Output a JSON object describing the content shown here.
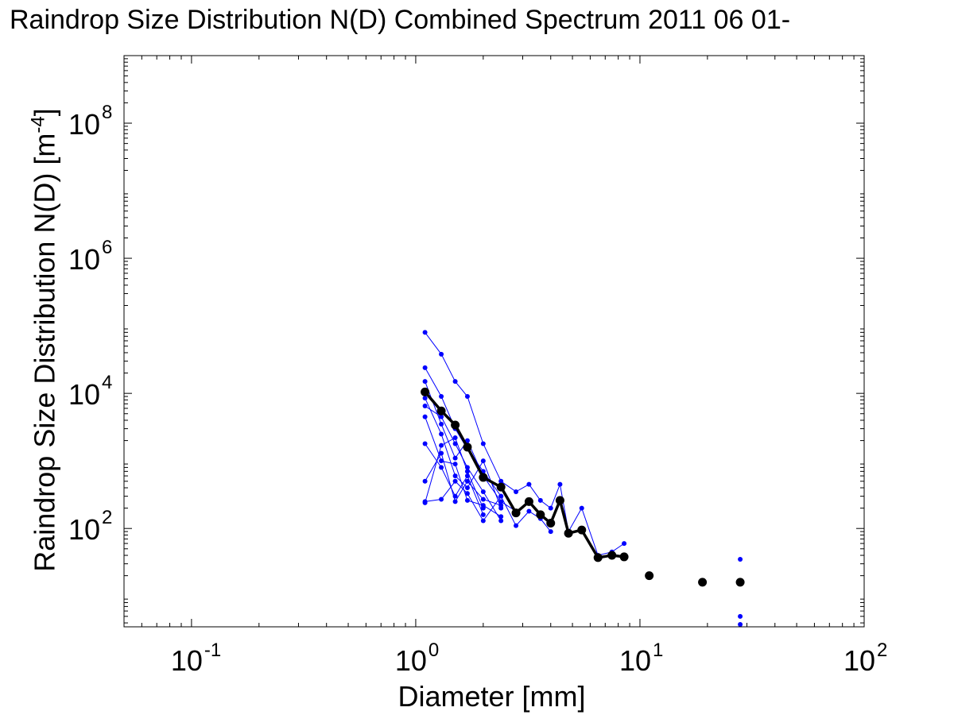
{
  "chart_data": {
    "type": "scatter",
    "title": "Raindrop Size Distribution N(D) Combined Spectrum 2011 06 01-",
    "xlabel": "Diameter [mm]",
    "ylabel_main": "Raindrop Size Distribution N(D) [m",
    "ylabel_exp": "-4",
    "ylabel_close": "]",
    "x_scale": "log",
    "y_scale": "log",
    "xlim": [
      0.05,
      100
    ],
    "ylim": [
      3.5,
      1000000000.0
    ],
    "x_ticks": [
      {
        "value": 0.1,
        "base": "10",
        "exp": "-1"
      },
      {
        "value": 1,
        "base": "10",
        "exp": "0"
      },
      {
        "value": 10,
        "base": "10",
        "exp": "1"
      },
      {
        "value": 100,
        "base": "10",
        "exp": "2"
      }
    ],
    "y_ticks": [
      {
        "value": 100,
        "base": "10",
        "exp": "2"
      },
      {
        "value": 10000,
        "base": "10",
        "exp": "4"
      },
      {
        "value": 1000000,
        "base": "10",
        "exp": "6"
      },
      {
        "value": 100000000,
        "base": "10",
        "exp": "8"
      }
    ],
    "grid": false,
    "legend": "none",
    "series": [
      {
        "color": "#0000ff",
        "style": "individual spectra (thin line with small dots)",
        "lines": [
          {
            "x": [
              1.1,
              1.3,
              1.5,
              1.7,
              2.0,
              2.4,
              2.8,
              3.2,
              3.6,
              4.0,
              4.4,
              4.8,
              5.5,
              6.5,
              7.5,
              8.5
            ],
            "y": [
              80000,
              38000,
              15000,
              9000,
              1800,
              500,
              350,
              450,
              260,
              200,
              450,
              90,
              200,
              40,
              45,
              60
            ]
          },
          {
            "x": [
              1.1,
              1.3,
              1.5,
              1.7,
              2.0,
              2.4,
              2.8,
              3.2,
              3.6,
              4.0
            ],
            "y": [
              24000,
              9000,
              3000,
              1500,
              700,
              300,
              110,
              180,
              140,
              90
            ]
          },
          {
            "x": [
              1.1,
              1.3,
              1.5,
              1.7,
              2.0,
              2.4,
              2.8
            ],
            "y": [
              15000,
              3500,
              1100,
              2000,
              600,
              250,
              180
            ]
          },
          {
            "x": [
              1.1,
              1.3,
              1.5,
              1.7,
              2.0,
              2.4
            ],
            "y": [
              8500,
              2500,
              600,
              400,
              1000,
              200
            ]
          },
          {
            "x": [
              1.1,
              1.3,
              1.5,
              1.7,
              2.0,
              2.4
            ],
            "y": [
              6500,
              4500,
              1800,
              800,
              350,
              130
            ]
          },
          {
            "x": [
              1.1,
              1.3,
              1.5,
              1.7,
              2.0,
              2.4
            ],
            "y": [
              4500,
              1000,
              900,
              260,
              220,
              150
            ]
          },
          {
            "x": [
              1.1,
              1.3,
              1.5,
              1.7,
              2.0
            ],
            "y": [
              1800,
              800,
              300,
              600,
              160
            ]
          },
          {
            "x": [
              1.1,
              1.3,
              1.5,
              1.7,
              2.0,
              2.4
            ],
            "y": [
              500,
              1300,
              250,
              500,
              270,
              220
            ]
          },
          {
            "x": [
              1.1,
              1.3,
              1.5,
              1.7,
              2.0,
              2.4
            ],
            "y": [
              250,
              270,
              500,
              330,
              130,
              300
            ]
          },
          {
            "x": [
              1.1,
              1.3,
              1.5,
              1.7,
              2.0
            ],
            "y": [
              240,
              1700,
              2200,
              700,
              200
            ]
          }
        ],
        "points": [
          {
            "x": 28,
            "y": 35
          },
          {
            "x": 28,
            "y": 5
          },
          {
            "x": 28,
            "y": 3.8
          }
        ]
      },
      {
        "color": "#000000",
        "style": "combined spectrum (thick line with large dots)",
        "x": [
          1.1,
          1.3,
          1.5,
          1.7,
          2.0,
          2.4,
          2.8,
          3.2,
          3.6,
          4.0,
          4.4,
          4.8,
          5.5,
          6.5,
          7.5,
          8.5,
          11,
          19,
          28
        ],
        "y": [
          10500,
          5500,
          3400,
          1600,
          570,
          410,
          170,
          250,
          160,
          120,
          260,
          85,
          95,
          37,
          40,
          38,
          20,
          16,
          16
        ],
        "connected_up_to": 8.5
      }
    ]
  }
}
